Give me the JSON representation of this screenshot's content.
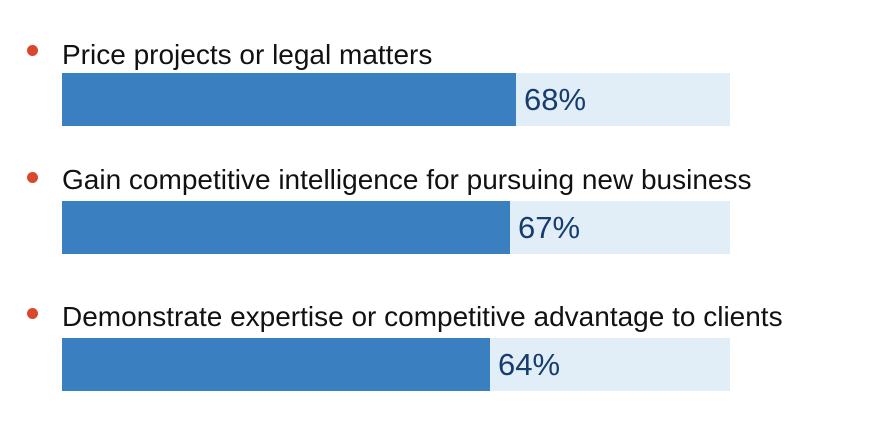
{
  "colors": {
    "bullet": "#d9482b",
    "bar_fill": "#3a80c0",
    "bar_track": "#e1eef8",
    "label_text": "#111111",
    "value_text": "#163d6e"
  },
  "chart_data": {
    "type": "bar",
    "orientation": "horizontal",
    "categories": [
      "Price projects or legal matters",
      "Gain competitive intelligence for pursuing new business",
      "Demonstrate expertise or competitive advantage to clients"
    ],
    "values": [
      68,
      67,
      64
    ],
    "value_labels": [
      "68%",
      "67%",
      "64%"
    ],
    "xlim": [
      0,
      100
    ],
    "grid": false,
    "legend": "none"
  }
}
